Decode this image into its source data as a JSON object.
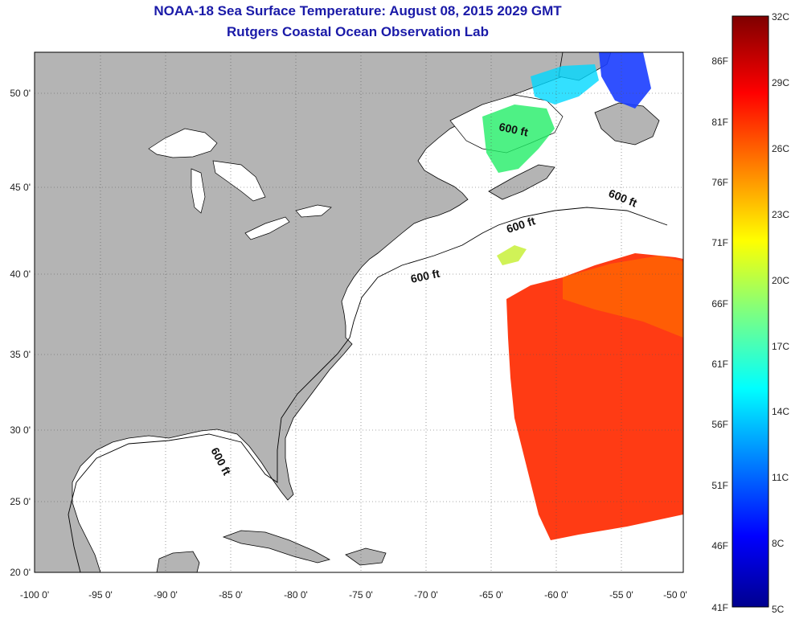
{
  "title": {
    "line1": "NOAA-18 Sea Surface Temperature:  August 08, 2015 2029 GMT",
    "line2": "Rutgers Coastal Ocean Observation Lab"
  },
  "axes": {
    "lon_labels": [
      "-100 0'",
      "-95 0'",
      "-90 0'",
      "-85 0'",
      "-80 0'",
      "-75 0'",
      "-70 0'",
      "-65 0'",
      "-60 0'",
      "-55 0'",
      "-50 0'"
    ],
    "lat_labels": [
      "50 0'",
      "45 0'",
      "40 0'",
      "35 0'",
      "30 0'",
      "25 0'",
      "20 0'"
    ]
  },
  "contours": {
    "label": "600 ft"
  },
  "colorbar": {
    "celsius": [
      "32C",
      "29C",
      "26C",
      "23C",
      "20C",
      "17C",
      "14C",
      "11C",
      "8C",
      "5C"
    ],
    "fahrenheit": [
      "86F",
      "81F",
      "76F",
      "71F",
      "66F",
      "61F",
      "56F",
      "51F",
      "46F",
      "41F"
    ]
  },
  "colors": {
    "land": "#b4b4b4",
    "ocean": "#ffffff",
    "title": "#1a1aa8",
    "sst_warm": "#ff2a00",
    "sst_cool": "#22ee66"
  }
}
